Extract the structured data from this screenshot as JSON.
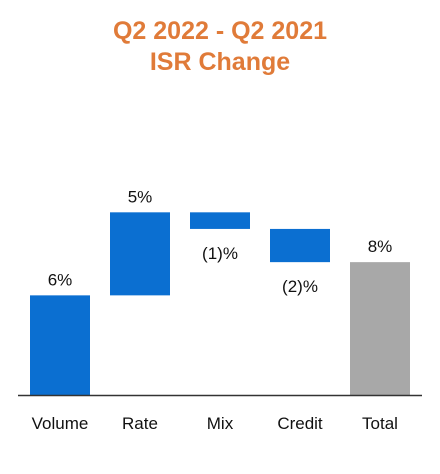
{
  "colors": {
    "title": "#e07b39",
    "bar": "#0b6fd1",
    "total_bar": "#a8a8a8",
    "axis": "#333333",
    "text": "#111111"
  },
  "chart_data": {
    "type": "bar",
    "subtype": "waterfall",
    "title": "Q2 2022 - Q2 2021",
    "subtitle": "ISR Change",
    "categories": [
      "Volume",
      "Rate",
      "Mix",
      "Credit",
      "Total"
    ],
    "values": [
      6,
      5,
      -1,
      -2,
      8
    ],
    "data_labels": [
      "6%",
      "5%",
      "(1)%",
      "(2)%",
      "8%"
    ],
    "total_index": 4,
    "xlabel": "",
    "ylabel": "",
    "ylim": [
      0,
      11.2
    ],
    "grid": false,
    "legend": "none"
  }
}
